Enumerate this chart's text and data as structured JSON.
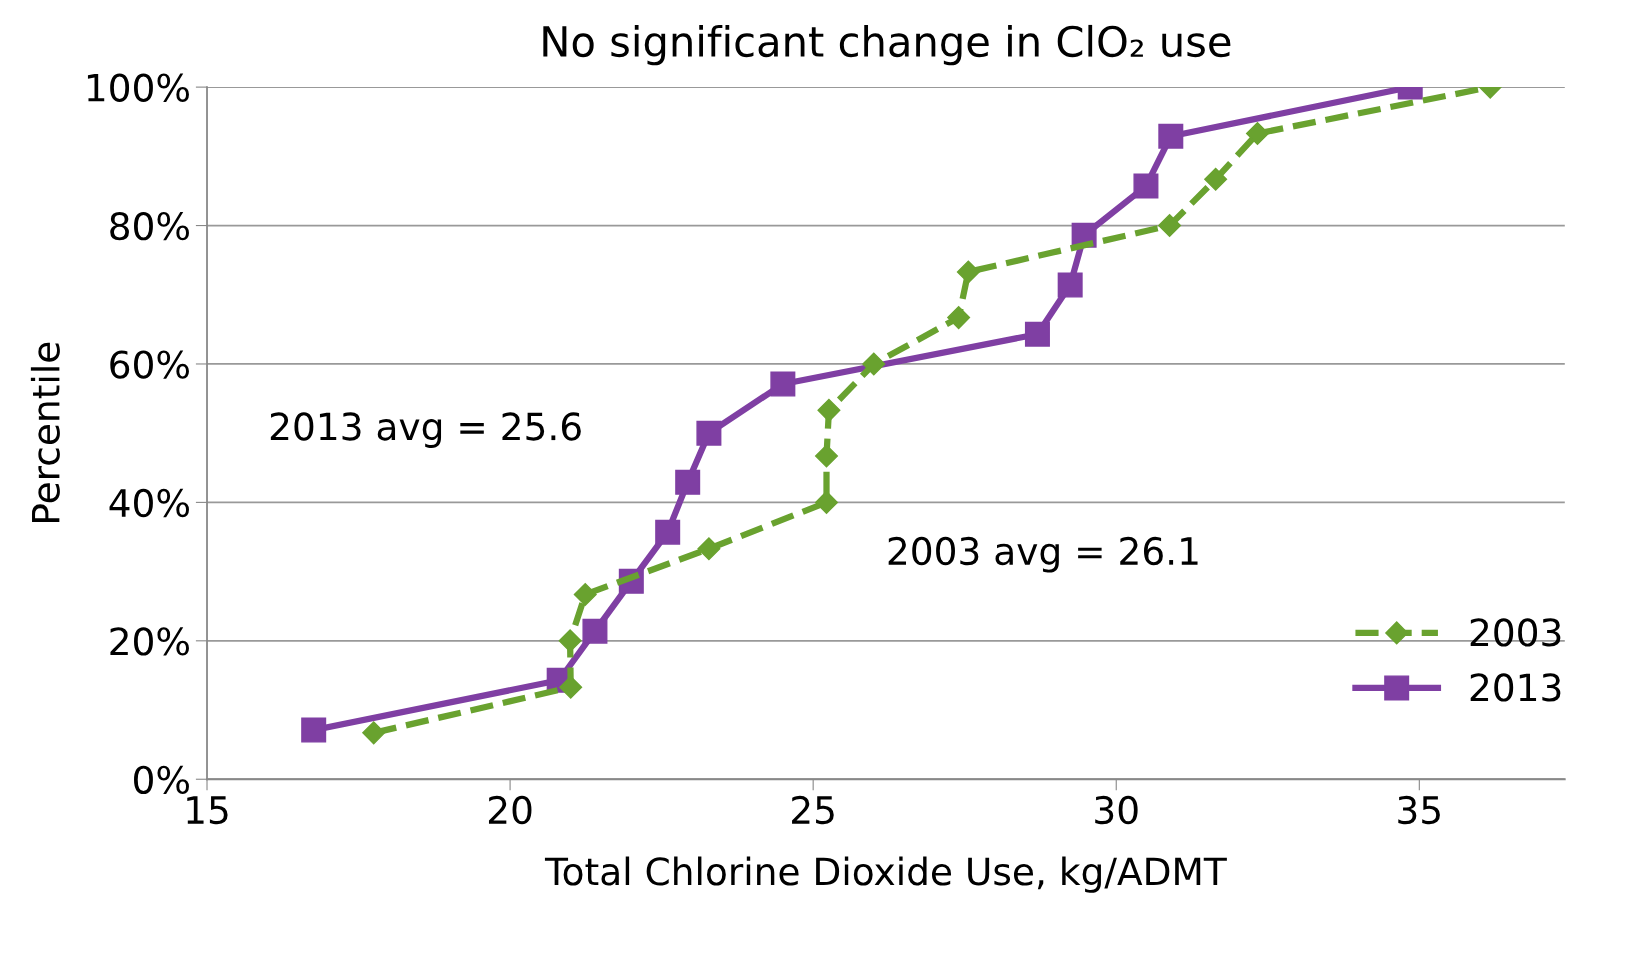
{
  "chart_data": {
    "type": "line",
    "title": "No significant change in ClO₂ use",
    "xlabel": "Total Chlorine Dioxide Use, kg/ADMT",
    "ylabel": "Percentile",
    "xlim": [
      15,
      37.4
    ],
    "xticks": [
      15,
      20,
      25,
      30,
      35
    ],
    "ylim": [
      0,
      100
    ],
    "yticks": [
      {
        "value": 0,
        "label": "0%"
      },
      {
        "value": 20,
        "label": "20%"
      },
      {
        "value": 40,
        "label": "40%"
      },
      {
        "value": 60,
        "label": "60%"
      },
      {
        "value": 80,
        "label": "80%"
      },
      {
        "value": 100,
        "label": "100%"
      }
    ],
    "grid": "y",
    "legend": "bottom right",
    "series": [
      {
        "name": "2003",
        "color": "#69a22f",
        "marker": "diamond",
        "line_style": "dashed",
        "x": [
          17.75,
          21.0,
          20.99,
          21.24,
          23.28,
          25.22,
          25.22,
          25.26,
          26.0,
          27.4,
          27.56,
          30.88,
          31.64,
          32.33,
          36.17
        ],
        "values": [
          6.7,
          13.3,
          20,
          26.7,
          33.3,
          40,
          46.7,
          53.3,
          60,
          66.7,
          73.3,
          80,
          86.7,
          93.3,
          100
        ]
      },
      {
        "name": "2013",
        "color": "#7f3fa3",
        "marker": "square",
        "line_style": "solid",
        "x": [
          16.76,
          20.81,
          21.4,
          22.0,
          22.6,
          22.93,
          23.28,
          24.5,
          28.7,
          29.24,
          29.47,
          30.49,
          30.9,
          34.85
        ],
        "values": [
          7.1,
          14.3,
          21.4,
          28.6,
          35.7,
          42.9,
          50,
          57.1,
          64.3,
          71.4,
          78.6,
          85.7,
          92.9,
          100
        ]
      }
    ],
    "annotations": [
      "2013 avg = 25.6",
      "2003 avg = 26.1"
    ]
  }
}
